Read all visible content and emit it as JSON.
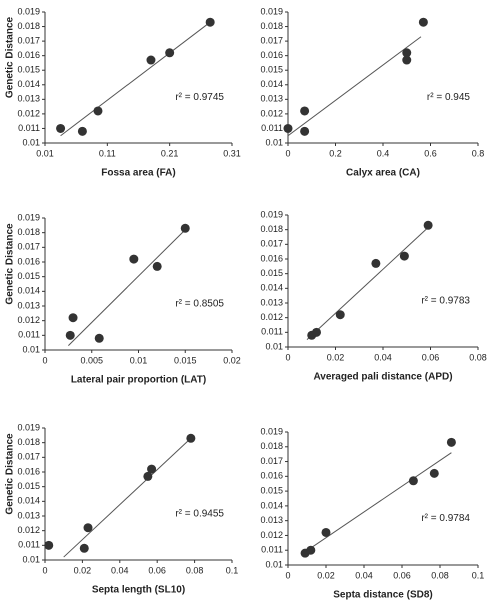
{
  "chart_data": [
    {
      "type": "scatter",
      "x_label": "Fossa area (FA)",
      "y_label": "Genetic Distance",
      "annotation": "r² = 0.9745",
      "color": "#333333",
      "x": [
        0.035,
        0.07,
        0.095,
        0.18,
        0.21,
        0.275
      ],
      "values": [
        0.011,
        0.0108,
        0.0122,
        0.0157,
        0.0162,
        0.0183
      ],
      "trendline": {
        "x": [
          0.035,
          0.275
        ],
        "y": [
          0.0105,
          0.0183
        ]
      },
      "xlim": [
        0.01,
        0.31
      ],
      "xticks": [
        0.01,
        0.11,
        0.21,
        0.31
      ],
      "ylim": [
        0.01,
        0.019
      ],
      "yticks": [
        0.01,
        0.011,
        0.012,
        0.013,
        0.014,
        0.015,
        0.016,
        0.017,
        0.018,
        0.019
      ]
    },
    {
      "type": "scatter",
      "x_label": "Calyx area (CA)",
      "annotation": "r² = 0.945",
      "color": "#333333",
      "x": [
        0,
        0.07,
        0.07,
        0.5,
        0.5,
        0.57
      ],
      "values": [
        0.011,
        0.0122,
        0.0108,
        0.0157,
        0.0162,
        0.0183
      ],
      "trendline": {
        "x": [
          0,
          0.56
        ],
        "y": [
          0.0105,
          0.0173
        ]
      },
      "xlim": [
        0,
        0.8
      ],
      "xticks": [
        0,
        0.2,
        0.4,
        0.6,
        0.8
      ],
      "ylim": [
        0.01,
        0.019
      ],
      "yticks": [
        0.01,
        0.011,
        0.012,
        0.013,
        0.014,
        0.015,
        0.016,
        0.017,
        0.018,
        0.019
      ]
    },
    {
      "type": "scatter",
      "x_label": "Lateral pair proportion (LAT)",
      "y_label": "Genetic Distance",
      "annotation": "r² = 0.8505",
      "color": "#333333",
      "x": [
        0.0027,
        0.003,
        0.0058,
        0.0095,
        0.012,
        0.015
      ],
      "values": [
        0.011,
        0.0122,
        0.0108,
        0.0162,
        0.0157,
        0.0183
      ],
      "trendline": {
        "x": [
          0.0025,
          0.015
        ],
        "y": [
          0.0103,
          0.0182
        ]
      },
      "xlim": [
        0,
        0.02
      ],
      "xticks": [
        0,
        0.005,
        0.01,
        0.015,
        0.02
      ],
      "ylim": [
        0.01,
        0.019
      ],
      "yticks": [
        0.01,
        0.011,
        0.012,
        0.013,
        0.014,
        0.015,
        0.016,
        0.017,
        0.018,
        0.019
      ]
    },
    {
      "type": "scatter",
      "x_label": "Averaged pali distance (APD)",
      "annotation": "r² = 0.9783",
      "color": "#333333",
      "x": [
        0.01,
        0.012,
        0.022,
        0.037,
        0.049,
        0.059
      ],
      "values": [
        0.0108,
        0.011,
        0.0122,
        0.0157,
        0.0162,
        0.0183
      ],
      "trendline": {
        "x": [
          0.008,
          0.06
        ],
        "y": [
          0.0105,
          0.0183
        ]
      },
      "xlim": [
        0,
        0.08
      ],
      "xticks": [
        0,
        0.02,
        0.04,
        0.06,
        0.08
      ],
      "ylim": [
        0.01,
        0.019
      ],
      "yticks": [
        0.01,
        0.011,
        0.012,
        0.013,
        0.014,
        0.015,
        0.016,
        0.017,
        0.018,
        0.019
      ]
    },
    {
      "type": "scatter",
      "x_label": "Septa length (SL10)",
      "y_label": "Genetic Distance",
      "annotation": "r² = 0.9455",
      "color": "#333333",
      "x": [
        0.002,
        0.021,
        0.023,
        0.055,
        0.057,
        0.078
      ],
      "values": [
        0.011,
        0.0108,
        0.0122,
        0.0157,
        0.0162,
        0.0183
      ],
      "trendline": {
        "x": [
          0.01,
          0.078
        ],
        "y": [
          0.0102,
          0.0183
        ]
      },
      "xlim": [
        0,
        0.1
      ],
      "xticks": [
        0,
        0.02,
        0.04,
        0.06,
        0.08,
        0.1
      ],
      "ylim": [
        0.01,
        0.019
      ],
      "yticks": [
        0.01,
        0.011,
        0.012,
        0.013,
        0.014,
        0.015,
        0.016,
        0.017,
        0.018,
        0.019
      ]
    },
    {
      "type": "scatter",
      "x_label": "Septa distance (SD8)",
      "annotation": "r² = 0.9784",
      "color": "#333333",
      "x": [
        0.009,
        0.012,
        0.02,
        0.066,
        0.077,
        0.086
      ],
      "values": [
        0.0108,
        0.011,
        0.0122,
        0.0157,
        0.0162,
        0.0183
      ],
      "trendline": {
        "x": [
          0.008,
          0.086
        ],
        "y": [
          0.0108,
          0.0176
        ]
      },
      "xlim": [
        0,
        0.1
      ],
      "xticks": [
        0,
        0.02,
        0.04,
        0.06,
        0.08,
        0.1
      ],
      "ylim": [
        0.01,
        0.019
      ],
      "yticks": [
        0.01,
        0.011,
        0.012,
        0.013,
        0.014,
        0.015,
        0.016,
        0.017,
        0.018,
        0.019
      ]
    }
  ]
}
